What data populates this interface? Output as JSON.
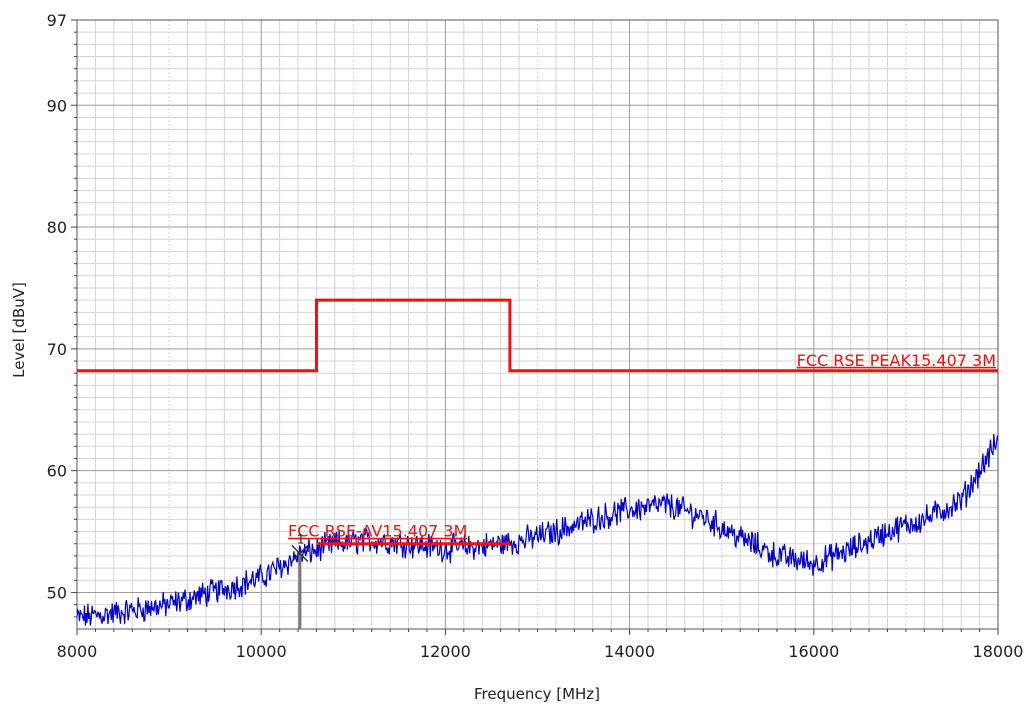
{
  "chart_data": {
    "type": "line",
    "title": "",
    "xlabel": "Frequency [MHz]",
    "ylabel": "Level [dBuV]",
    "xlim": [
      8000,
      18000
    ],
    "ylim": [
      47,
      97
    ],
    "x_ticks": [
      8000,
      10000,
      12000,
      14000,
      16000,
      18000
    ],
    "x_tick_labels": [
      "8000",
      "10000",
      "12000",
      "14000",
      "16000",
      "18000"
    ],
    "y_ticks": [
      50,
      60,
      70,
      80,
      90,
      97
    ],
    "y_tick_labels": [
      "50",
      "60",
      "70",
      "80",
      "90",
      "97"
    ],
    "grid": true,
    "colors": {
      "measurement": "#0000cc",
      "limit": "#ee1111",
      "grid_major": "#9a9a9a",
      "grid_minor": "#d4d4d4",
      "marker": "#333333"
    },
    "series": [
      {
        "key": "peak-limit",
        "name": "FCC RSE PEAK15.407 3M",
        "style": "step",
        "x": [
          8000,
          10600,
          10600,
          12700,
          12700,
          18000
        ],
        "y": [
          68.2,
          68.2,
          74,
          74,
          68.2,
          68.2
        ]
      },
      {
        "key": "av-limit",
        "name": "FCC RSE-AV15.407 3M",
        "style": "line",
        "x": [
          10600,
          12700
        ],
        "y": [
          54,
          54
        ]
      },
      {
        "key": "measurement",
        "name": "",
        "style": "noisy",
        "x": [
          8000,
          8500,
          9000,
          9500,
          10000,
          10400,
          10800,
          11200,
          11600,
          12000,
          12400,
          12800,
          13200,
          13600,
          14000,
          14400,
          14800,
          15200,
          15600,
          16000,
          16400,
          16800,
          17200,
          17600,
          18000
        ],
        "y": [
          47.9,
          48.4,
          49.0,
          50.1,
          51.2,
          53.0,
          54.0,
          54.3,
          54.0,
          53.6,
          53.8,
          54.2,
          55.0,
          56.0,
          56.8,
          57.2,
          56.2,
          54.5,
          53.0,
          52.4,
          53.5,
          55.0,
          56.0,
          57.5,
          62.5
        ]
      }
    ],
    "markers": [
      {
        "label": "1",
        "x": 10420,
        "y": 53.2
      }
    ]
  }
}
